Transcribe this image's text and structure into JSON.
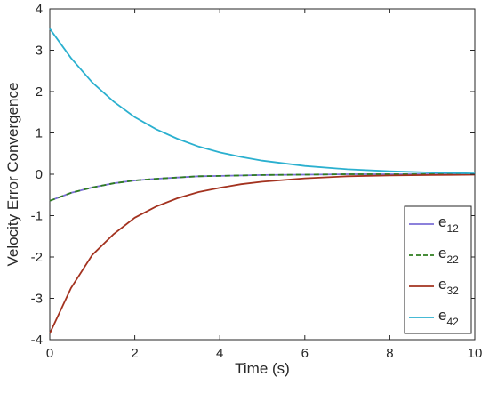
{
  "chart_data": {
    "type": "line",
    "xlabel": "Time (s)",
    "ylabel": "Velocity Error Convergence",
    "xlim": [
      0,
      10
    ],
    "ylim": [
      -4,
      4
    ],
    "xticks": [
      0,
      2,
      4,
      6,
      8,
      10
    ],
    "yticks": [
      -4,
      -3,
      -2,
      -1,
      0,
      1,
      2,
      3,
      4
    ],
    "grid": false,
    "legend_position": "bottom-right",
    "x": [
      0,
      0.5,
      1,
      1.5,
      2,
      2.5,
      3,
      3.5,
      4,
      4.5,
      5,
      6,
      7,
      8,
      9,
      10
    ],
    "series": [
      {
        "name_base": "e",
        "name_sub": "12",
        "color": "#7b6fd6",
        "dash": "solid",
        "values": [
          -0.64,
          -0.45,
          -0.32,
          -0.22,
          -0.15,
          -0.11,
          -0.08,
          -0.05,
          -0.04,
          -0.03,
          -0.02,
          -0.01,
          0.0,
          0.0,
          0.0,
          0.0
        ]
      },
      {
        "name_base": "e",
        "name_sub": "22",
        "color": "#2e7d1f",
        "dash": "dashed",
        "values": [
          -0.64,
          -0.45,
          -0.32,
          -0.22,
          -0.15,
          -0.11,
          -0.08,
          -0.05,
          -0.04,
          -0.03,
          -0.02,
          -0.01,
          0.0,
          0.0,
          0.0,
          0.0
        ]
      },
      {
        "name_base": "e",
        "name_sub": "32",
        "color": "#a3321f",
        "dash": "solid",
        "values": [
          -3.85,
          -2.75,
          -1.95,
          -1.45,
          -1.05,
          -0.78,
          -0.58,
          -0.43,
          -0.33,
          -0.24,
          -0.18,
          -0.1,
          -0.05,
          -0.03,
          -0.02,
          -0.01
        ]
      },
      {
        "name_base": "e",
        "name_sub": "42",
        "color": "#2bb0cf",
        "dash": "solid",
        "values": [
          3.52,
          2.81,
          2.22,
          1.76,
          1.38,
          1.09,
          0.86,
          0.67,
          0.53,
          0.42,
          0.33,
          0.2,
          0.12,
          0.07,
          0.04,
          0.02
        ]
      }
    ]
  }
}
